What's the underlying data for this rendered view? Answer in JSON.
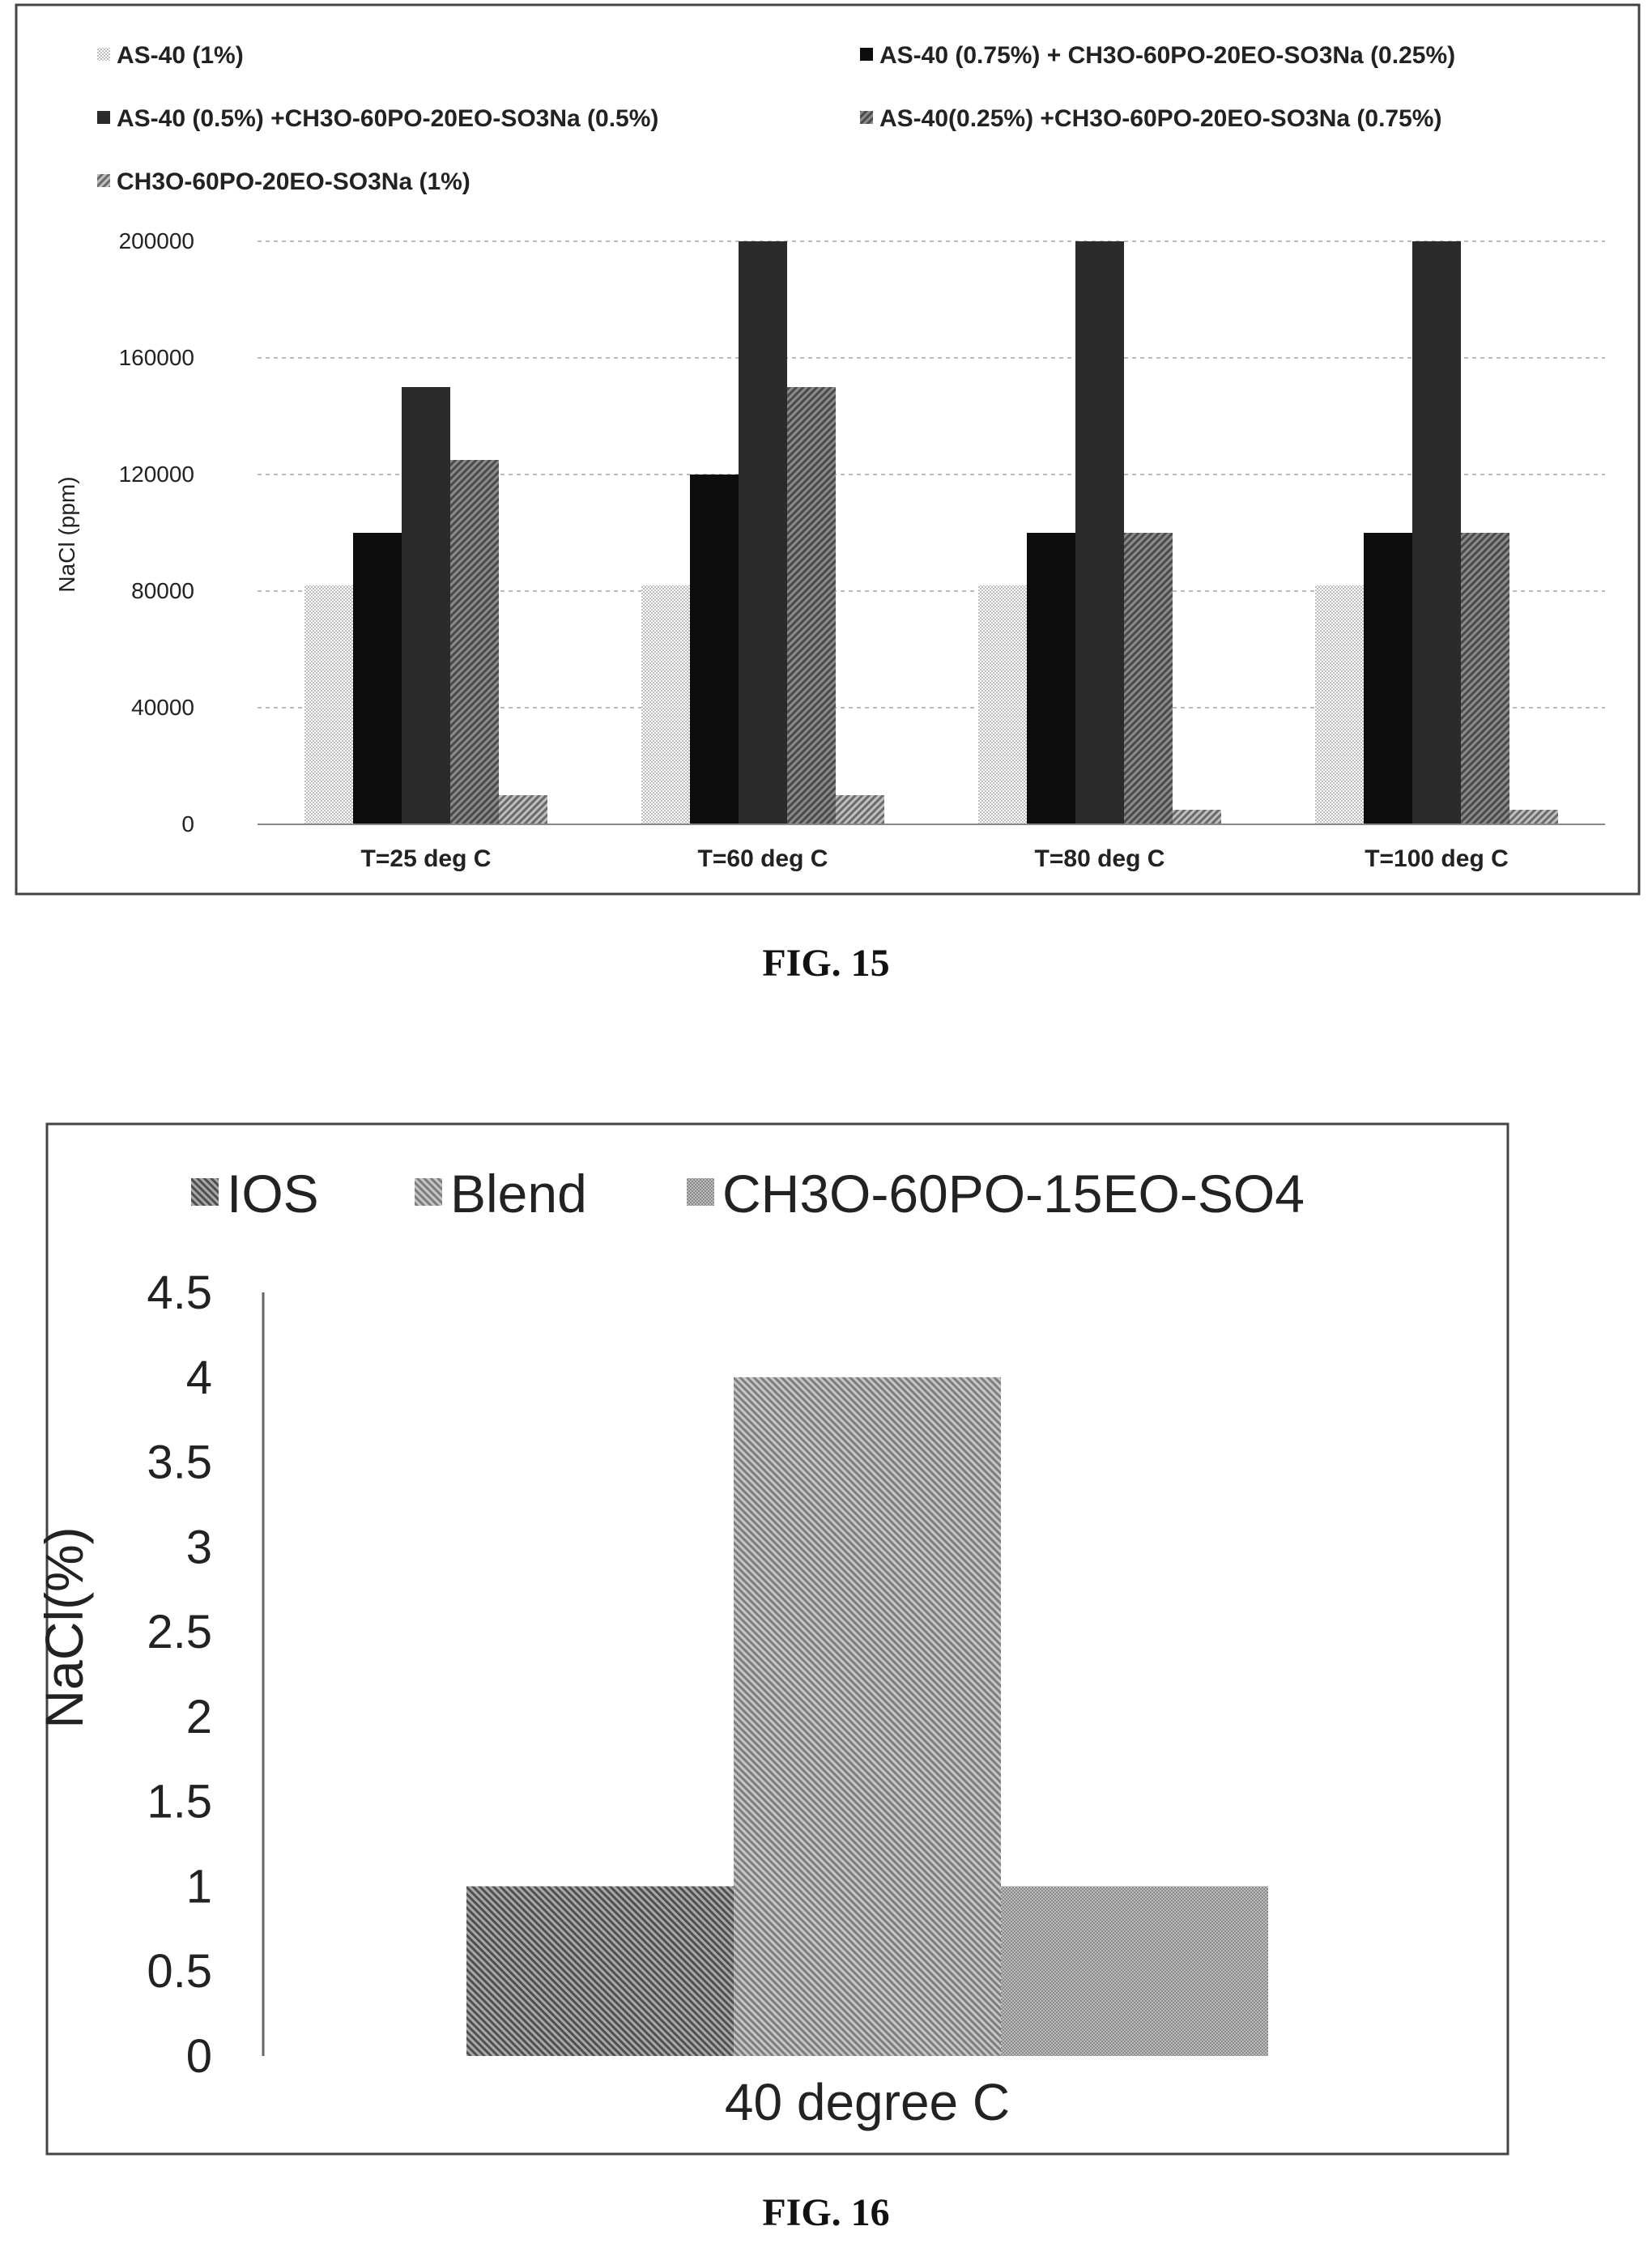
{
  "figures": [
    {
      "caption": "FIG. 15"
    },
    {
      "caption": "FIG. 16"
    }
  ],
  "colors": {
    "frame": "#444444",
    "grid": "#bbbbbb",
    "axis": "#888888",
    "text": "#222222",
    "fills": [
      "#d4d4d4",
      "#0d0d0d",
      "#2b2b2b",
      "#6e6e6e",
      "#9a9a9a",
      "#7a7a7a",
      "#9c9c9c"
    ]
  },
  "chart_data": [
    {
      "type": "bar",
      "title": "",
      "xlabel": "",
      "ylabel": "NaCl (ppm)",
      "ylim": [
        0,
        200000
      ],
      "yticks": [
        "0",
        "40000",
        "80000",
        "120000",
        "160000",
        "200000"
      ],
      "legend_position": "top",
      "grid": true,
      "categories": [
        "T=25 deg C",
        "T=60 deg C",
        "T=80 deg C",
        "T=100 deg C"
      ],
      "series": [
        {
          "name": "AS-40 (1%)",
          "values": [
            82000,
            82000,
            82000,
            82000
          ]
        },
        {
          "name": "AS-40 (0.75%) + CH3O-60PO-20EO-SO3Na (0.25%)",
          "values": [
            100000,
            120000,
            100000,
            100000
          ]
        },
        {
          "name": "AS-40 (0.5%) +CH3O-60PO-20EO-SO3Na (0.5%)",
          "values": [
            150000,
            200000,
            200000,
            200000
          ]
        },
        {
          "name": "AS-40(0.25%) +CH3O-60PO-20EO-SO3Na (0.75%)",
          "values": [
            125000,
            150000,
            100000,
            100000
          ]
        },
        {
          "name": "CH3O-60PO-20EO-SO3Na (1%)",
          "values": [
            10000,
            10000,
            5000,
            5000
          ]
        }
      ]
    },
    {
      "type": "bar",
      "title": "",
      "xlabel": "",
      "ylabel": "NaCl(%)",
      "ylim": [
        0,
        4.5
      ],
      "yticks": [
        "0",
        "0.5",
        "1",
        "1.5",
        "2",
        "2.5",
        "3",
        "3.5",
        "4",
        "4.5"
      ],
      "legend_position": "top",
      "grid": false,
      "categories": [
        "40 degree C"
      ],
      "series": [
        {
          "name": "IOS",
          "values": [
            1
          ]
        },
        {
          "name": "Blend",
          "values": [
            4
          ]
        },
        {
          "name": "CH3O-60PO-15EO-SO4",
          "values": [
            1
          ]
        }
      ]
    }
  ]
}
